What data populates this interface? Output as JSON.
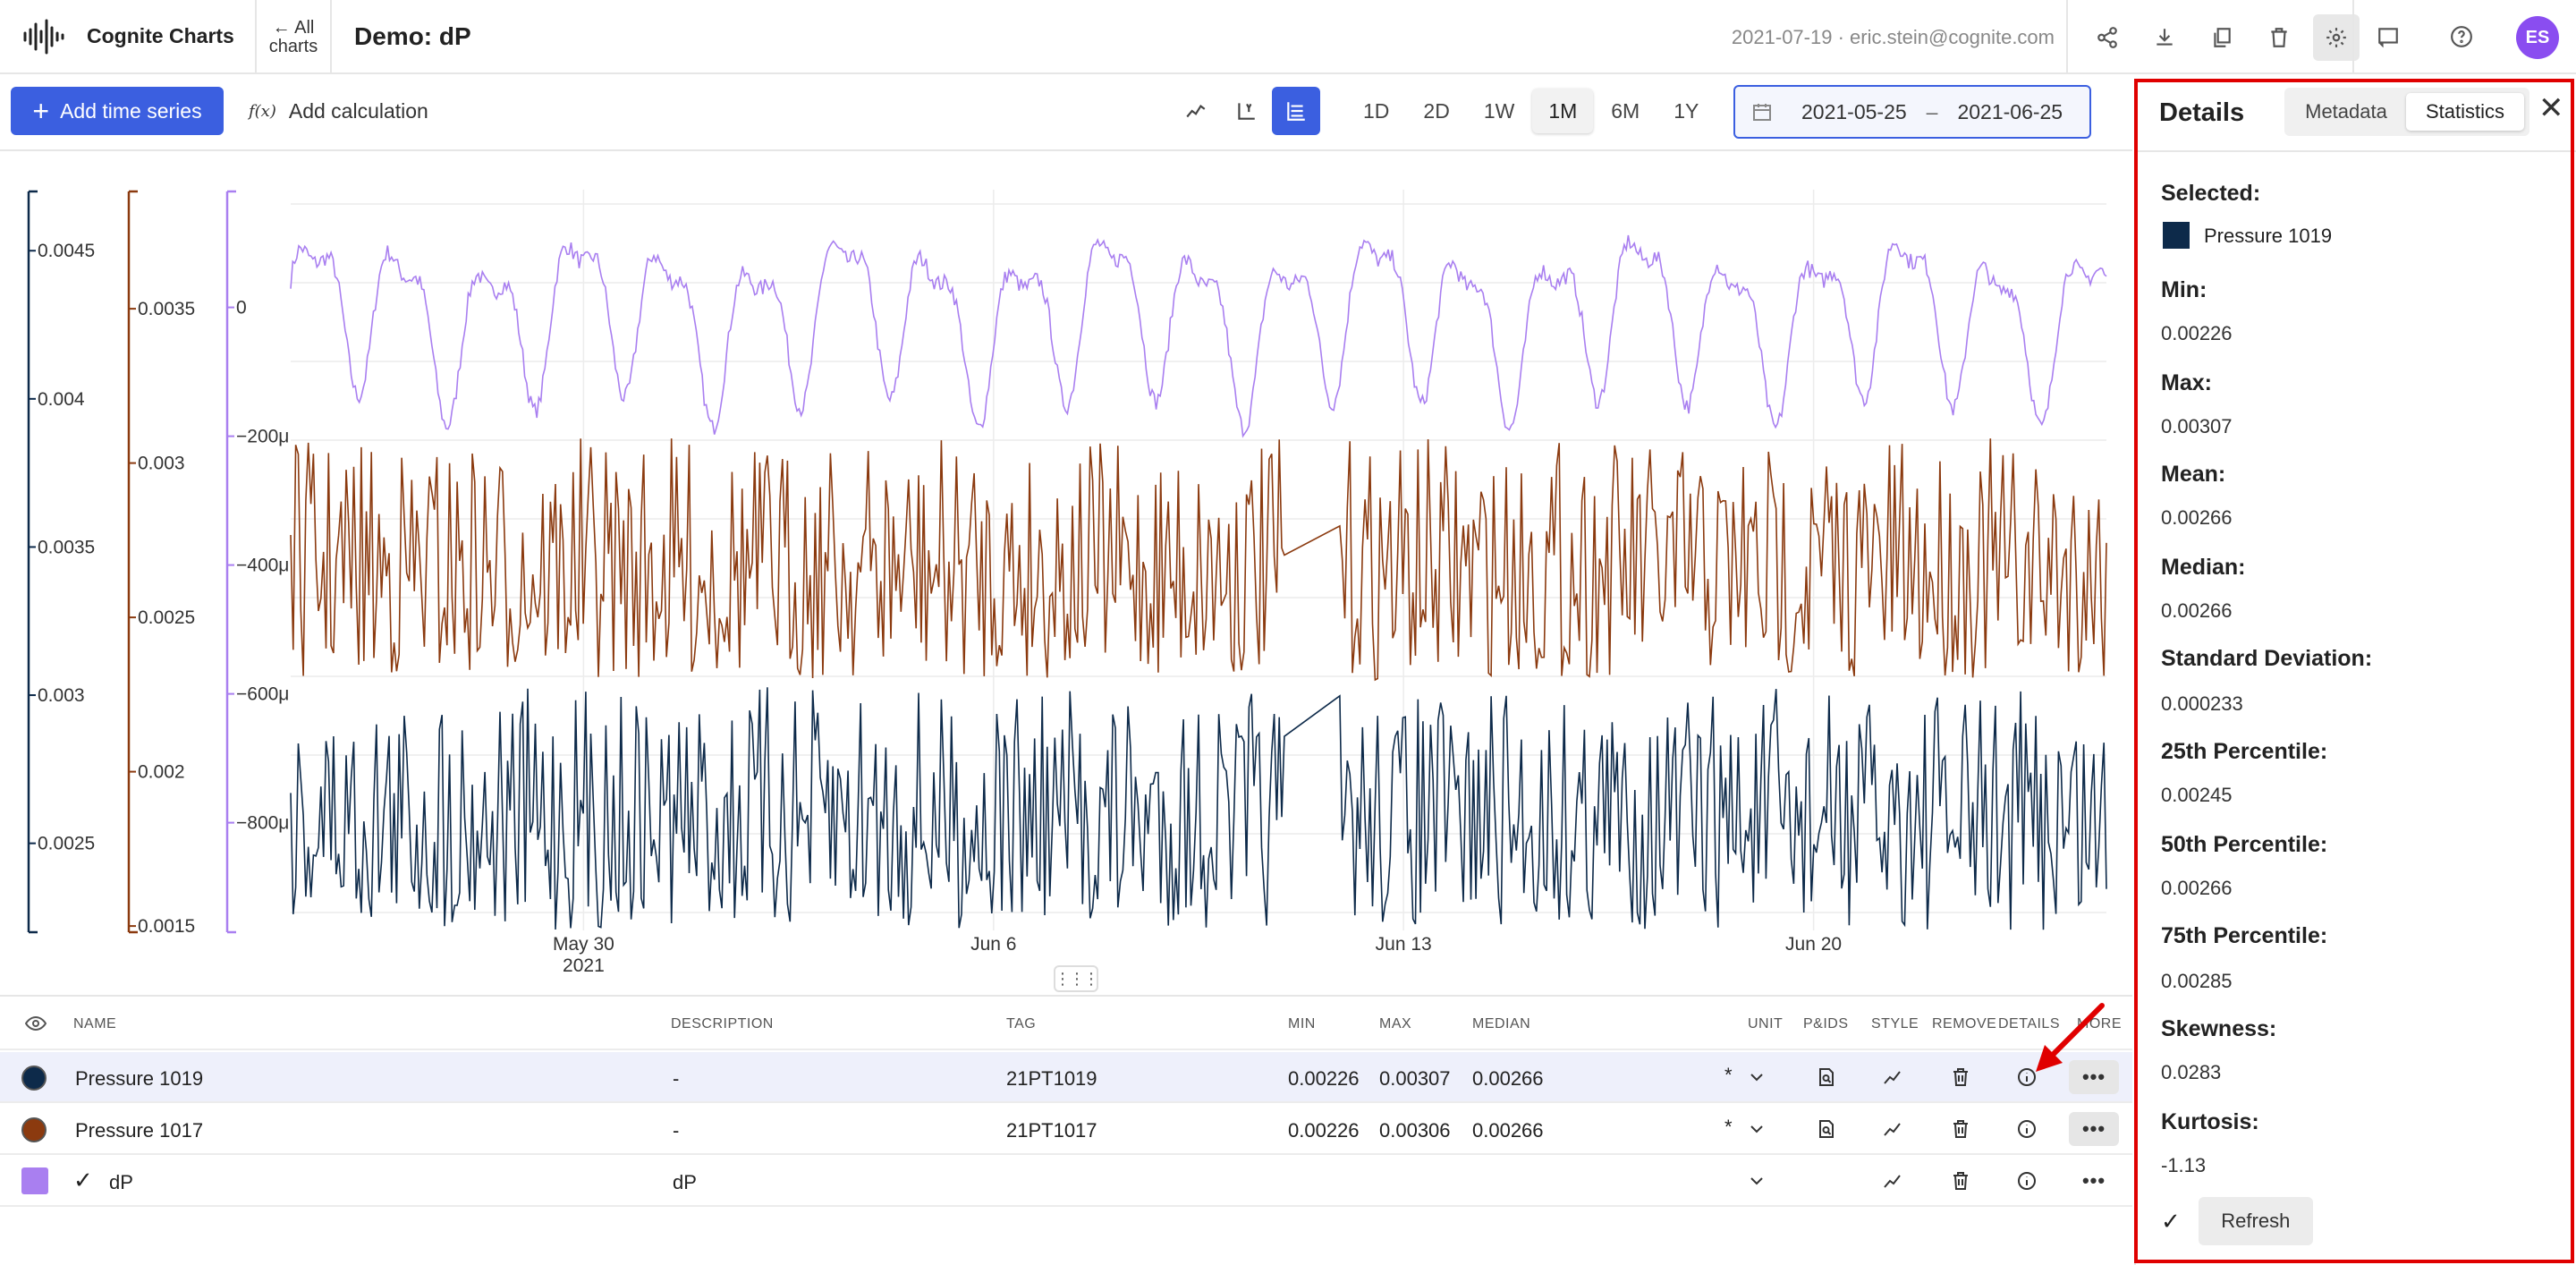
{
  "header": {
    "app_name": "Cognite Charts",
    "back_label_line1": "← All",
    "back_label_line2": "charts",
    "chart_title": "Demo: dP",
    "meta": "2021-07-19 · eric.stein@cognite.com",
    "icons": [
      "share-icon",
      "download-icon",
      "duplicate-icon",
      "delete-icon",
      "settings-icon",
      "feedback-icon",
      "help-icon"
    ],
    "avatar_initials": "ES"
  },
  "toolbar": {
    "add_time_series": "Add time series",
    "add_calculation": "Add calculation",
    "fx_glyph": "f(x)",
    "view_modes": [
      "line-view-icon",
      "y-axis-view-icon",
      "stacked-view-icon"
    ],
    "active_view": "stacked-view-icon",
    "ranges": [
      "1D",
      "2D",
      "1W",
      "1M",
      "6M",
      "1Y"
    ],
    "active_range": "1M",
    "date_from": "2021-05-25",
    "date_sep": "–",
    "date_to": "2021-06-25"
  },
  "chart_data": {
    "type": "line",
    "layout": "stacked",
    "grid": true,
    "x_ticks": [
      {
        "label": "May 30",
        "sublabel": "2021",
        "date": "2021-05-30"
      },
      {
        "label": "Jun 6",
        "sublabel": "",
        "date": "2021-06-06"
      },
      {
        "label": "Jun 13",
        "sublabel": "",
        "date": "2021-06-13"
      },
      {
        "label": "Jun 20",
        "sublabel": "",
        "date": "2021-06-20"
      }
    ],
    "x_range": [
      "2021-05-25",
      "2021-06-25"
    ],
    "axes": [
      {
        "series": "Pressure 1019",
        "color": "#0d2a4a",
        "ticks": [
          "0.0045",
          "0.004",
          "0.0035",
          "0.003",
          "0.0025"
        ],
        "tick_values": [
          0.0045,
          0.004,
          0.0035,
          0.003,
          0.0025
        ],
        "range": [
          0.0022,
          0.0047
        ]
      },
      {
        "series": "Pressure 1017",
        "color": "#8b3a0f",
        "ticks": [
          "0.0035",
          "0.003",
          "0.0025",
          "0.002",
          "0.0015"
        ],
        "tick_values": [
          0.0035,
          0.003,
          0.0025,
          0.002,
          0.0015
        ],
        "range": [
          0.00148,
          0.00388
        ]
      },
      {
        "series": "dP",
        "color": "#a97ff0",
        "ticks": [
          "0",
          "−200μ",
          "−400μ",
          "−600μ",
          "−800μ"
        ],
        "tick_values": [
          0,
          -0.0002,
          -0.0004,
          -0.0006,
          -0.0008
        ],
        "range": [
          -0.00097,
          0.00018
        ]
      }
    ],
    "series": [
      {
        "name": "Pressure 1019",
        "color": "#0d2a4a",
        "min": 0.00226,
        "max": 0.00307,
        "median": 0.00266
      },
      {
        "name": "Pressure 1017",
        "color": "#8b3a0f",
        "min": 0.00226,
        "max": 0.00306,
        "median": 0.00266
      },
      {
        "name": "dP",
        "color": "#a97ff0"
      }
    ]
  },
  "table": {
    "headers": {
      "name": "NAME",
      "description": "DESCRIPTION",
      "tag": "TAG",
      "min": "MIN",
      "max": "MAX",
      "median": "MEDIAN",
      "unit": "UNIT",
      "pids": "P&IDS",
      "style": "STYLE",
      "remove": "REMOVE",
      "details": "DETAILS",
      "more": "MORE"
    },
    "rows": [
      {
        "name": "Pressure 1019",
        "description": "-",
        "tag": "21PT1019",
        "min": "0.00226",
        "max": "0.00307",
        "median": "0.00266",
        "unit_mark": "*",
        "color": "#0d2a4a"
      },
      {
        "name": "Pressure 1017",
        "description": "-",
        "tag": "21PT1017",
        "min": "0.00226",
        "max": "0.00306",
        "median": "0.00266",
        "unit_mark": "*",
        "color": "#8b3a0f"
      },
      {
        "name": "dP",
        "description": "dP",
        "tag": "",
        "min": "",
        "max": "",
        "median": "",
        "unit_mark": "",
        "color": "#a97ff0"
      }
    ]
  },
  "details": {
    "title": "Details",
    "tabs": [
      "Metadata",
      "Statistics"
    ],
    "active_tab": "Statistics",
    "close": "✕",
    "selected_label": "Selected:",
    "selected_name": "Pressure 1019",
    "selected_color": "#0d2a4a",
    "stats": [
      {
        "label": "Min:",
        "value": "0.00226"
      },
      {
        "label": "Max:",
        "value": "0.00307"
      },
      {
        "label": "Mean:",
        "value": "0.00266"
      },
      {
        "label": "Median:",
        "value": "0.00266"
      },
      {
        "label": "Standard Deviation:",
        "value": "0.000233"
      },
      {
        "label": "25th Percentile:",
        "value": "0.00245"
      },
      {
        "label": "50th Percentile:",
        "value": "0.00266"
      },
      {
        "label": "75th Percentile:",
        "value": "0.00285"
      },
      {
        "label": "Skewness:",
        "value": "0.0283"
      },
      {
        "label": "Kurtosis:",
        "value": "-1.13"
      }
    ],
    "refresh_check": "✓",
    "refresh_label": "Refresh"
  },
  "colors": {
    "accent": "#3b5fe0",
    "highlight": "#e00000"
  }
}
